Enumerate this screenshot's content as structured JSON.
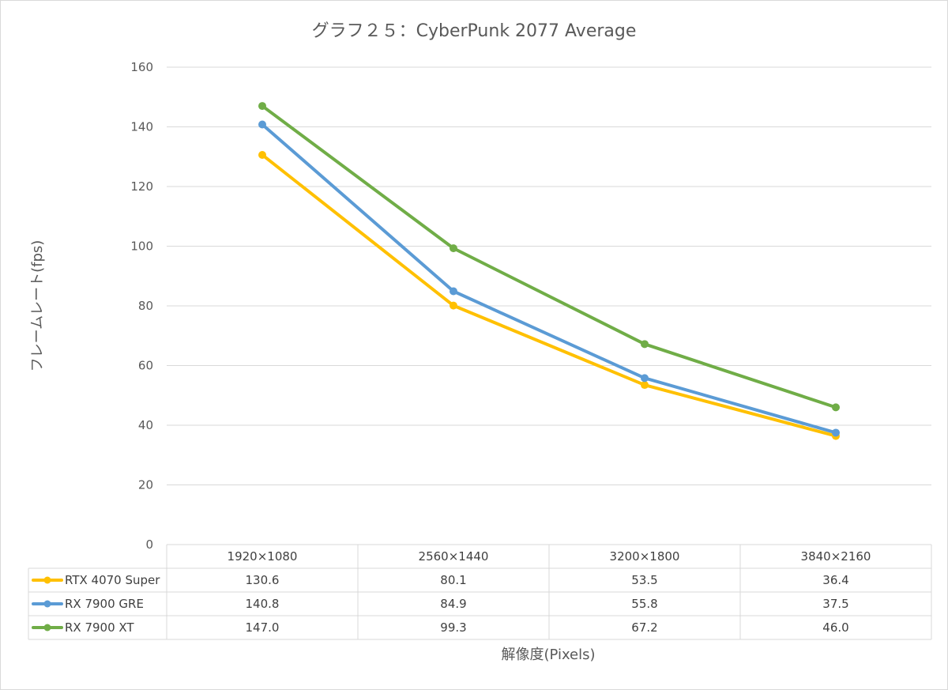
{
  "chart_data": {
    "type": "line",
    "title": "グラフ２５：CyberPunk 2077 Average",
    "xlabel": "解像度(Pixels)",
    "ylabel": "フレームレート(fps)",
    "ylim": [
      0,
      160
    ],
    "yticks": [
      0,
      20,
      40,
      60,
      80,
      100,
      120,
      140,
      160
    ],
    "categories": [
      "1920×1080",
      "2560×1440",
      "3200×1800",
      "3840×2160"
    ],
    "grid": true,
    "legend": "data-table",
    "series": [
      {
        "name": "RTX 4070 Super",
        "color": "#FFC000",
        "values": [
          130.6,
          80.1,
          53.5,
          36.4
        ],
        "labels": [
          "130.6",
          "80.1",
          "53.5",
          "36.4"
        ]
      },
      {
        "name": "RX 7900 GRE",
        "color": "#5B9BD5",
        "values": [
          140.8,
          84.9,
          55.8,
          37.5
        ],
        "labels": [
          "140.8",
          "84.9",
          "55.8",
          "37.5"
        ]
      },
      {
        "name": "RX 7900 XT",
        "color": "#70AD47",
        "values": [
          147.0,
          99.3,
          67.2,
          46.0
        ],
        "labels": [
          "147.0",
          "99.3",
          "67.2",
          "46.0"
        ]
      }
    ]
  }
}
